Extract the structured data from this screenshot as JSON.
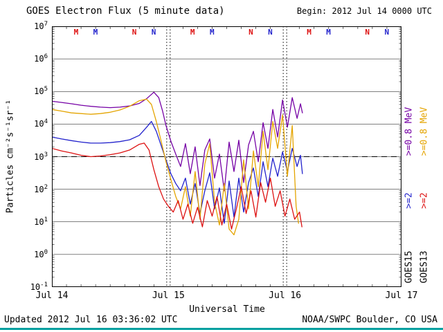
{
  "header": {
    "title": "GOES Electron Flux (5 minute data)",
    "begin": "Begin: 2012 Jul 14 0000 UTC"
  },
  "footer": {
    "updated": "Updated 2012 Jul 16 03:36:02 UTC",
    "credit": "NOAA/SWPC Boulder, CO USA",
    "rule_color": "#00a0a0"
  },
  "axes": {
    "x_label": "Universal Time",
    "y_label": "Particles cm⁻²s⁻¹sr⁻¹",
    "x_ticks": [
      "Jul 14",
      "Jul 15",
      "Jul 16",
      "Jul 17"
    ],
    "y_tick_exponents": [
      7,
      6,
      5,
      4,
      3,
      2,
      1,
      0,
      -1
    ],
    "x_range_hours": [
      0,
      72
    ],
    "threshold_flux": 1000
  },
  "legend": {
    "columns": [
      {
        "satellite": "GOES15",
        "channels": [
          {
            "label": ">=0.8 MeV",
            "color": "#7500a5"
          },
          {
            "label": ">=2",
            "color": "#2222cc"
          }
        ]
      },
      {
        "satellite": "GOES13",
        "channels": [
          {
            "label": ">=0.8 MeV",
            "color": "#e4a400"
          },
          {
            "label": ">=2",
            "color": "#dd1111"
          }
        ]
      }
    ]
  },
  "markers": [
    {
      "label": "M",
      "satellite": "GOES13",
      "color": "#dd1111",
      "t": 5
    },
    {
      "label": "M",
      "satellite": "GOES15",
      "color": "#2222cc",
      "t": 9
    },
    {
      "label": "N",
      "satellite": "GOES13",
      "color": "#dd1111",
      "t": 17
    },
    {
      "label": "N",
      "satellite": "GOES15",
      "color": "#2222cc",
      "t": 21
    },
    {
      "label": "M",
      "satellite": "GOES13",
      "color": "#dd1111",
      "t": 29
    },
    {
      "label": "M",
      "satellite": "GOES15",
      "color": "#2222cc",
      "t": 33
    },
    {
      "label": "N",
      "satellite": "GOES13",
      "color": "#dd1111",
      "t": 41
    },
    {
      "label": "N",
      "satellite": "GOES15",
      "color": "#2222cc",
      "t": 45
    },
    {
      "label": "M",
      "satellite": "GOES13",
      "color": "#dd1111",
      "t": 53
    },
    {
      "label": "M",
      "satellite": "GOES15",
      "color": "#2222cc",
      "t": 57
    },
    {
      "label": "N",
      "satellite": "GOES13",
      "color": "#dd1111",
      "t": 65
    },
    {
      "label": "N",
      "satellite": "GOES15",
      "color": "#2222cc",
      "t": 69
    }
  ],
  "chart_data": {
    "type": "line",
    "title": "GOES Electron Flux (5 minute data)",
    "xlabel": "Universal Time",
    "ylabel": "Particles cm-2 s-1 sr-1",
    "x_unit": "hours since 2012 Jul 14 0000 UTC",
    "x_range": [
      0,
      72
    ],
    "y_scale": "log",
    "y_range": [
      0.1,
      10000000
    ],
    "grid": true,
    "threshold_line": 1000,
    "legend_position": "right",
    "series": [
      {
        "name": "GOES15 >=0.8 MeV",
        "color": "#7500a5",
        "points": [
          [
            0,
            50000
          ],
          [
            2,
            46000
          ],
          [
            4,
            42000
          ],
          [
            6,
            38000
          ],
          [
            8,
            35000
          ],
          [
            10,
            33000
          ],
          [
            12,
            32000
          ],
          [
            14,
            33000
          ],
          [
            16,
            36000
          ],
          [
            18,
            43000
          ],
          [
            19.5,
            60000
          ],
          [
            21,
            95000
          ],
          [
            22,
            65000
          ],
          [
            22.8,
            25000
          ],
          [
            23.5,
            9000
          ],
          [
            24.5,
            3000
          ],
          [
            25.5,
            1200
          ],
          [
            26.5,
            500
          ],
          [
            27.5,
            2500
          ],
          [
            28.5,
            300
          ],
          [
            29.5,
            2000
          ],
          [
            30.5,
            130
          ],
          [
            31.5,
            1600
          ],
          [
            32.5,
            3500
          ],
          [
            33.5,
            220
          ],
          [
            34.5,
            1200
          ],
          [
            35.5,
            90
          ],
          [
            36.5,
            2800
          ],
          [
            37.5,
            350
          ],
          [
            38.5,
            3200
          ],
          [
            39.5,
            160
          ],
          [
            40.5,
            2300
          ],
          [
            41.5,
            6000
          ],
          [
            42.5,
            700
          ],
          [
            43.5,
            11000
          ],
          [
            44.5,
            1800
          ],
          [
            45.5,
            28000
          ],
          [
            46.5,
            4000
          ],
          [
            47.5,
            55000
          ],
          [
            48.5,
            8000
          ],
          [
            49.5,
            65000
          ],
          [
            50.5,
            15000
          ],
          [
            51.2,
            42000
          ],
          [
            51.6,
            22000
          ]
        ]
      },
      {
        "name": "GOES15 >=2 MeV",
        "color": "#2222cc",
        "points": [
          [
            0,
            4000
          ],
          [
            2,
            3500
          ],
          [
            4,
            3100
          ],
          [
            6,
            2800
          ],
          [
            8,
            2600
          ],
          [
            10,
            2600
          ],
          [
            12,
            2700
          ],
          [
            14,
            2900
          ],
          [
            16,
            3300
          ],
          [
            18,
            4500
          ],
          [
            19.5,
            8000
          ],
          [
            20.5,
            12000
          ],
          [
            21.5,
            6000
          ],
          [
            22.5,
            2200
          ],
          [
            23.5,
            800
          ],
          [
            24.5,
            300
          ],
          [
            25.5,
            150
          ],
          [
            26.5,
            90
          ],
          [
            27.5,
            220
          ],
          [
            28.5,
            35
          ],
          [
            29.5,
            150
          ],
          [
            30.5,
            18
          ],
          [
            31.5,
            90
          ],
          [
            32.5,
            320
          ],
          [
            33.5,
            25
          ],
          [
            34.5,
            110
          ],
          [
            35.5,
            9
          ],
          [
            36.5,
            180
          ],
          [
            37.5,
            14
          ],
          [
            38.5,
            220
          ],
          [
            39.5,
            20
          ],
          [
            40.5,
            160
          ],
          [
            41.5,
            450
          ],
          [
            42.5,
            60
          ],
          [
            43.5,
            700
          ],
          [
            44.5,
            120
          ],
          [
            45.5,
            900
          ],
          [
            46.5,
            250
          ],
          [
            47.5,
            1400
          ],
          [
            48.5,
            350
          ],
          [
            49.5,
            1800
          ],
          [
            50.5,
            500
          ],
          [
            51.2,
            1100
          ],
          [
            51.6,
            300
          ]
        ]
      },
      {
        "name": "GOES13 >=0.8 MeV",
        "color": "#e4a400",
        "points": [
          [
            0,
            28000
          ],
          [
            2,
            25000
          ],
          [
            4,
            22000
          ],
          [
            6,
            21000
          ],
          [
            8,
            20000
          ],
          [
            10,
            21000
          ],
          [
            12,
            23000
          ],
          [
            14,
            27000
          ],
          [
            16,
            35000
          ],
          [
            18,
            52000
          ],
          [
            19.5,
            58000
          ],
          [
            20.5,
            40000
          ],
          [
            21.5,
            12000
          ],
          [
            22.5,
            3000
          ],
          [
            23.5,
            700
          ],
          [
            24.5,
            200
          ],
          [
            25.5,
            60
          ],
          [
            26.5,
            25
          ],
          [
            27.5,
            120
          ],
          [
            28.5,
            15
          ],
          [
            29.5,
            350
          ],
          [
            30.5,
            12
          ],
          [
            31.5,
            600
          ],
          [
            32.5,
            2500
          ],
          [
            33.5,
            40
          ],
          [
            34.5,
            8
          ],
          [
            35.5,
            150
          ],
          [
            36.5,
            6
          ],
          [
            37.5,
            4
          ],
          [
            38.5,
            12
          ],
          [
            39.5,
            800
          ],
          [
            40.5,
            25
          ],
          [
            41.5,
            1500
          ],
          [
            42.5,
            120
          ],
          [
            43.5,
            6000
          ],
          [
            44.5,
            400
          ],
          [
            45.5,
            12000
          ],
          [
            46.5,
            1800
          ],
          [
            47.5,
            19000
          ],
          [
            48.5,
            250
          ],
          [
            49.5,
            9000
          ],
          [
            50.3,
            30
          ],
          [
            50.8,
            9
          ]
        ]
      },
      {
        "name": "GOES13 >=2 MeV",
        "color": "#dd1111",
        "points": [
          [
            0,
            1800
          ],
          [
            2,
            1500
          ],
          [
            4,
            1300
          ],
          [
            6,
            1100
          ],
          [
            8,
            1000
          ],
          [
            10,
            1050
          ],
          [
            12,
            1150
          ],
          [
            14,
            1300
          ],
          [
            16,
            1600
          ],
          [
            18,
            2400
          ],
          [
            19,
            2600
          ],
          [
            20,
            1600
          ],
          [
            21,
            400
          ],
          [
            22,
            120
          ],
          [
            23,
            50
          ],
          [
            24,
            30
          ],
          [
            25,
            20
          ],
          [
            26,
            45
          ],
          [
            27,
            12
          ],
          [
            28,
            35
          ],
          [
            29,
            9
          ],
          [
            30,
            28
          ],
          [
            31,
            7
          ],
          [
            32,
            45
          ],
          [
            33,
            15
          ],
          [
            34,
            60
          ],
          [
            35,
            8
          ],
          [
            36,
            35
          ],
          [
            37,
            6
          ],
          [
            38,
            25
          ],
          [
            39,
            120
          ],
          [
            40,
            18
          ],
          [
            41,
            90
          ],
          [
            42,
            14
          ],
          [
            43,
            160
          ],
          [
            44,
            40
          ],
          [
            45,
            220
          ],
          [
            46,
            30
          ],
          [
            47,
            90
          ],
          [
            48,
            15
          ],
          [
            49,
            50
          ],
          [
            50,
            12
          ],
          [
            51,
            20
          ],
          [
            51.5,
            7
          ]
        ]
      }
    ]
  }
}
